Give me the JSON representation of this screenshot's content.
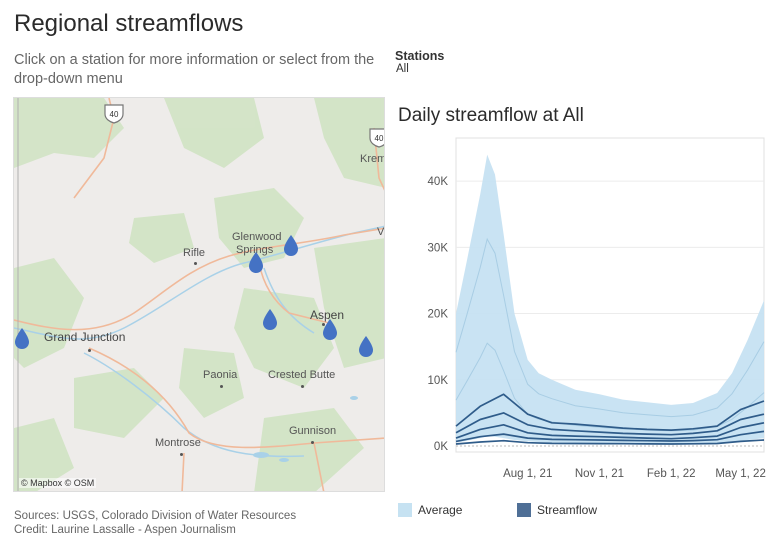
{
  "header": {
    "title": "Regional streamflows",
    "instructions": "Click on a station for more information or select from the drop-down menu"
  },
  "stations_filter": {
    "label": "Stations",
    "selected": "All"
  },
  "map": {
    "towns": [
      {
        "name": "Rifle",
        "size": "normal"
      },
      {
        "name": "Glenwood",
        "size": "normal"
      },
      {
        "name": "Springs",
        "size": "normal"
      },
      {
        "name": "Aspen",
        "size": "big"
      },
      {
        "name": "Grand Junction",
        "size": "big"
      },
      {
        "name": "Paonia",
        "size": "normal"
      },
      {
        "name": "Crested Butte",
        "size": "normal"
      },
      {
        "name": "Montrose",
        "size": "normal"
      },
      {
        "name": "Gunnison",
        "size": "normal"
      },
      {
        "name": "Kremm",
        "size": "normal"
      },
      {
        "name": "V",
        "size": "normal"
      }
    ],
    "highway_shields": [
      "40",
      "40"
    ],
    "attribution": "© Mapbox © OSM",
    "colors": {
      "marker": "#4472c4",
      "land": "#eeecea",
      "forest": "#cfe3c2",
      "road": "#f0b99a",
      "water": "#a9d1e8"
    }
  },
  "chart_title": "Daily streamflow at All",
  "chart_data": {
    "type": "area",
    "title": "Daily streamflow at All",
    "xlabel": "",
    "ylabel": "",
    "x_ticks": [
      "Aug 1, 21",
      "Nov 1, 21",
      "Feb 1, 22",
      "May 1, 22"
    ],
    "y_ticks": [
      "0K",
      "10K",
      "20K",
      "30K",
      "40K"
    ],
    "ylim": [
      0,
      45000
    ],
    "x_range": [
      "2021-05-01",
      "2022-05-31"
    ],
    "grid": true,
    "legend_position": "bottom",
    "series": [
      {
        "name": "Average",
        "kind": "band",
        "color": "#c6e2f2",
        "x": [
          "2021-05-01",
          "2021-05-15",
          "2021-06-01",
          "2021-06-10",
          "2021-06-20",
          "2021-07-01",
          "2021-07-15",
          "2021-08-01",
          "2021-08-15",
          "2021-09-01",
          "2021-10-01",
          "2021-11-01",
          "2021-12-01",
          "2022-01-01",
          "2022-02-01",
          "2022-03-01",
          "2022-04-01",
          "2022-04-20",
          "2022-05-10",
          "2022-05-31"
        ],
        "upper": [
          20000,
          28000,
          38000,
          44000,
          41000,
          32000,
          20000,
          13000,
          11000,
          10000,
          8500,
          7800,
          7000,
          6600,
          6200,
          6500,
          8000,
          11000,
          16000,
          22000
        ],
        "lower": [
          500,
          800,
          1200,
          1500,
          1400,
          1200,
          900,
          700,
          600,
          500,
          450,
          400,
          380,
          360,
          350,
          380,
          450,
          600,
          900,
          1200
        ]
      },
      {
        "name": "Streamflow",
        "kind": "lines",
        "color": "#2f5c8a",
        "x": [
          "2021-05-01",
          "2021-06-01",
          "2021-07-01",
          "2021-08-01",
          "2021-09-01",
          "2021-10-01",
          "2021-11-01",
          "2021-12-01",
          "2022-01-01",
          "2022-02-01",
          "2022-03-01",
          "2022-04-01",
          "2022-05-01",
          "2022-05-31"
        ],
        "lines": [
          [
            3000,
            6000,
            7800,
            4800,
            3500,
            3300,
            3000,
            2700,
            2500,
            2400,
            2600,
            3000,
            5500,
            6800
          ],
          [
            2000,
            4000,
            5000,
            3200,
            2500,
            2300,
            2100,
            1900,
            1800,
            1700,
            1900,
            2300,
            4000,
            4800
          ],
          [
            1200,
            2500,
            3200,
            2000,
            1600,
            1500,
            1400,
            1300,
            1200,
            1100,
            1250,
            1500,
            2800,
            3500
          ],
          [
            700,
            1400,
            1800,
            1200,
            1000,
            950,
            900,
            850,
            800,
            750,
            820,
            950,
            1700,
            2200
          ],
          [
            300,
            600,
            800,
            500,
            400,
            380,
            360,
            340,
            320,
            300,
            330,
            380,
            700,
            900
          ]
        ]
      }
    ]
  },
  "legend": {
    "average_label": "Average",
    "streamflow_label": "Streamflow",
    "colors": {
      "average": "#c6e2f2",
      "streamflow": "#4f6f96"
    }
  },
  "footer": {
    "sources": "Sources: USGS, Colorado Division of Water Resources",
    "credit": "Credit: Laurine Lassalle - Aspen Journalism"
  }
}
